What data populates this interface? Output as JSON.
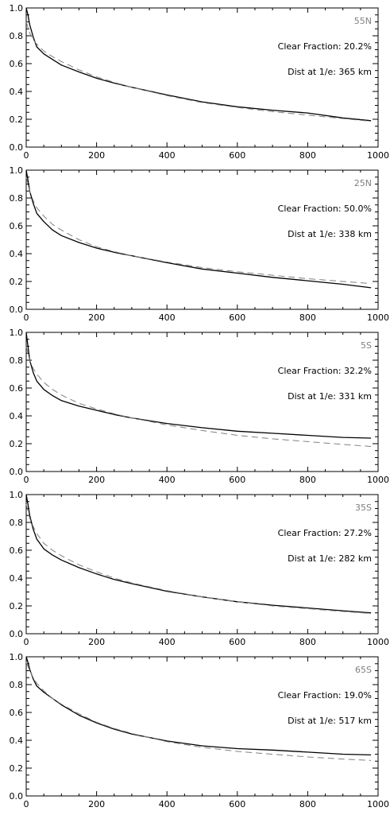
{
  "colors": {
    "axis": "#000000",
    "solid_line": "#000000",
    "dashed_line": "#808080",
    "latitude_label": "#808080"
  },
  "chart_data": [
    {
      "type": "line",
      "title": "",
      "xlabel": "",
      "ylabel": "",
      "xlim": [
        0,
        1000
      ],
      "ylim": [
        0,
        1.0
      ],
      "xticks": [
        "0",
        "200",
        "400",
        "600",
        "800",
        "1000"
      ],
      "yticks": [
        "0.0",
        "0.2",
        "0.4",
        "0.6",
        "0.8",
        "1.0"
      ],
      "grid": false,
      "annotations": {
        "latitude": "55N",
        "clear_fraction": "Clear Fraction: 20.2%",
        "distance": "Dist at 1/e: 365 km"
      },
      "x": [
        0,
        5,
        10,
        20,
        30,
        50,
        75,
        100,
        150,
        200,
        250,
        300,
        400,
        500,
        600,
        700,
        800,
        900,
        980
      ],
      "series": [
        {
          "style": "solid",
          "values": [
            1.0,
            0.95,
            0.88,
            0.79,
            0.72,
            0.67,
            0.63,
            0.59,
            0.54,
            0.495,
            0.46,
            0.43,
            0.375,
            0.325,
            0.29,
            0.265,
            0.245,
            0.21,
            0.19
          ]
        },
        {
          "style": "dashed",
          "values": [
            0.9,
            0.86,
            0.82,
            0.77,
            0.74,
            0.69,
            0.65,
            0.615,
            0.555,
            0.505,
            0.465,
            0.43,
            0.37,
            0.32,
            0.285,
            0.255,
            0.23,
            0.205,
            0.185
          ]
        }
      ]
    },
    {
      "type": "line",
      "title": "",
      "xlabel": "",
      "ylabel": "",
      "xlim": [
        0,
        1000
      ],
      "ylim": [
        0,
        1.0
      ],
      "xticks": [
        "0",
        "200",
        "400",
        "600",
        "800",
        "1000"
      ],
      "yticks": [
        "0.0",
        "0.2",
        "0.4",
        "0.6",
        "0.8",
        "1.0"
      ],
      "grid": false,
      "annotations": {
        "latitude": "25N",
        "clear_fraction": "Clear Fraction: 50.0%",
        "distance": "Dist at 1/e: 338 km"
      },
      "x": [
        0,
        5,
        10,
        20,
        30,
        50,
        75,
        100,
        150,
        200,
        250,
        300,
        400,
        500,
        600,
        700,
        800,
        900,
        980
      ],
      "series": [
        {
          "style": "solid",
          "values": [
            1.0,
            0.93,
            0.85,
            0.76,
            0.69,
            0.63,
            0.57,
            0.53,
            0.48,
            0.44,
            0.41,
            0.385,
            0.335,
            0.29,
            0.26,
            0.23,
            0.205,
            0.18,
            0.155
          ]
        },
        {
          "style": "dashed",
          "values": [
            0.95,
            0.9,
            0.85,
            0.78,
            0.73,
            0.67,
            0.61,
            0.57,
            0.5,
            0.45,
            0.415,
            0.385,
            0.34,
            0.3,
            0.27,
            0.245,
            0.22,
            0.2,
            0.185
          ]
        }
      ]
    },
    {
      "type": "line",
      "title": "",
      "xlabel": "",
      "ylabel": "",
      "xlim": [
        0,
        1000
      ],
      "ylim": [
        0,
        1.0
      ],
      "xticks": [
        "0",
        "200",
        "400",
        "600",
        "800",
        "1000"
      ],
      "yticks": [
        "0.0",
        "0.2",
        "0.4",
        "0.6",
        "0.8",
        "1.0"
      ],
      "grid": false,
      "annotations": {
        "latitude": "5S",
        "clear_fraction": "Clear Fraction: 32.2%",
        "distance": "Dist at 1/e: 331 km"
      },
      "x": [
        0,
        5,
        10,
        20,
        30,
        50,
        75,
        100,
        150,
        200,
        250,
        300,
        400,
        500,
        600,
        700,
        800,
        900,
        980
      ],
      "series": [
        {
          "style": "solid",
          "values": [
            1.0,
            0.9,
            0.8,
            0.71,
            0.65,
            0.59,
            0.545,
            0.51,
            0.47,
            0.44,
            0.41,
            0.385,
            0.345,
            0.315,
            0.29,
            0.275,
            0.26,
            0.245,
            0.24
          ]
        },
        {
          "style": "dashed",
          "values": [
            0.9,
            0.85,
            0.8,
            0.74,
            0.7,
            0.64,
            0.59,
            0.55,
            0.49,
            0.45,
            0.415,
            0.385,
            0.335,
            0.295,
            0.26,
            0.235,
            0.215,
            0.195,
            0.18
          ]
        }
      ]
    },
    {
      "type": "line",
      "title": "",
      "xlabel": "",
      "ylabel": "",
      "xlim": [
        0,
        1000
      ],
      "ylim": [
        0,
        1.0
      ],
      "xticks": [
        "0",
        "200",
        "400",
        "600",
        "800",
        "1000"
      ],
      "yticks": [
        "0.0",
        "0.2",
        "0.4",
        "0.6",
        "0.8",
        "1.0"
      ],
      "grid": false,
      "annotations": {
        "latitude": "35S",
        "clear_fraction": "Clear Fraction: 27.2%",
        "distance": "Dist at 1/e: 282 km"
      },
      "x": [
        0,
        5,
        10,
        20,
        30,
        50,
        75,
        100,
        150,
        200,
        250,
        300,
        400,
        500,
        600,
        700,
        800,
        900,
        980
      ],
      "series": [
        {
          "style": "solid",
          "values": [
            1.0,
            0.93,
            0.85,
            0.75,
            0.68,
            0.61,
            0.565,
            0.53,
            0.475,
            0.43,
            0.39,
            0.36,
            0.305,
            0.265,
            0.23,
            0.205,
            0.185,
            0.165,
            0.15
          ]
        },
        {
          "style": "dashed",
          "values": [
            0.93,
            0.88,
            0.83,
            0.77,
            0.72,
            0.65,
            0.6,
            0.56,
            0.495,
            0.445,
            0.4,
            0.365,
            0.31,
            0.265,
            0.23,
            0.2,
            0.18,
            0.16,
            0.145
          ]
        }
      ]
    },
    {
      "type": "line",
      "title": "",
      "xlabel": "",
      "ylabel": "",
      "xlim": [
        0,
        1000
      ],
      "ylim": [
        0,
        1.0
      ],
      "xticks": [
        "0",
        "200",
        "400",
        "600",
        "800",
        "1000"
      ],
      "yticks": [
        "0.0",
        "0.2",
        "0.4",
        "0.6",
        "0.8",
        "1.0"
      ],
      "grid": false,
      "annotations": {
        "latitude": "65S",
        "clear_fraction": "Clear Fraction: 19.0%",
        "distance": "Dist at 1/e: 517 km"
      },
      "x": [
        0,
        5,
        10,
        20,
        30,
        50,
        75,
        100,
        150,
        200,
        250,
        300,
        400,
        500,
        600,
        700,
        800,
        900,
        980
      ],
      "series": [
        {
          "style": "solid",
          "values": [
            1.0,
            0.96,
            0.91,
            0.84,
            0.79,
            0.745,
            0.7,
            0.655,
            0.58,
            0.525,
            0.48,
            0.445,
            0.395,
            0.36,
            0.34,
            0.33,
            0.315,
            0.3,
            0.295
          ]
        },
        {
          "style": "dashed",
          "values": [
            0.96,
            0.93,
            0.9,
            0.85,
            0.81,
            0.755,
            0.7,
            0.66,
            0.59,
            0.53,
            0.485,
            0.45,
            0.39,
            0.35,
            0.32,
            0.3,
            0.28,
            0.265,
            0.255
          ]
        }
      ]
    }
  ]
}
